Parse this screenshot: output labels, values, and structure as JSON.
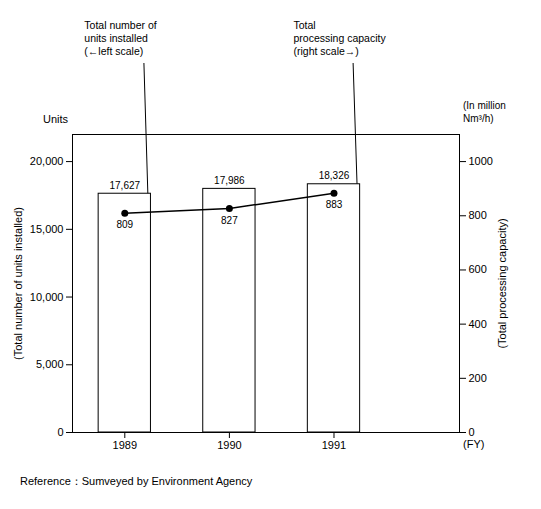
{
  "chart_data": {
    "type": "bar",
    "x": [
      1989,
      1990,
      1991
    ],
    "xlim": [
      1988.5,
      1992.2
    ],
    "xticks": [
      1989,
      1990,
      1991
    ],
    "xlabel": "(FY)",
    "ylabel": "(Total number of units installed)",
    "ylabel_top": "Units",
    "ylim": [
      0,
      22000
    ],
    "yticks": [
      0,
      {
        "value": 5000,
        "label": "5,000"
      },
      {
        "value": 10000,
        "label": "10,000"
      },
      {
        "value": 15000,
        "label": "15,000"
      },
      {
        "value": 20000,
        "label": "20,000"
      }
    ],
    "y2label": "(Total processing capacity)",
    "y2label_top": "(In million\nNm³/h)",
    "y2lim": [
      0,
      1100
    ],
    "y2ticks": [
      0,
      200,
      400,
      600,
      800,
      1000
    ],
    "series": [
      {
        "type": "bar",
        "color": "#ffffff",
        "values": [
          17627,
          17986,
          18326
        ],
        "value_labels": [
          "17,627",
          "17,986",
          "18,326"
        ]
      },
      {
        "type": "line",
        "axis": "y2",
        "color": "#000000",
        "marker": "circle",
        "values": [
          809,
          827,
          883
        ]
      }
    ],
    "data_labels": true,
    "grid": false,
    "annotations": [
      {
        "text": "Total number of\nunits installed\n(←left scale)",
        "x": 1989,
        "y": 17627
      },
      {
        "text": "Total\nprocessing capacity\n(right scale→)",
        "x": 1991,
        "y": 18326
      }
    ],
    "caption": "Reference：Sumveyed by Environment Agency"
  }
}
